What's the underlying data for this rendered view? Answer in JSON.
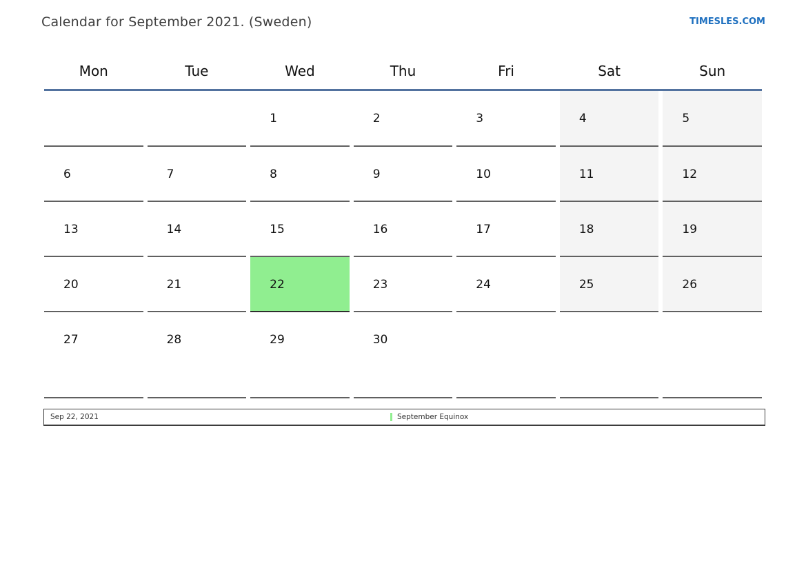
{
  "header": {
    "title": "Calendar for September 2021. (Sweden)",
    "site_link": "TIMESLES.COM"
  },
  "weekdays": [
    "Mon",
    "Tue",
    "Wed",
    "Thu",
    "Fri",
    "Sat",
    "Sun"
  ],
  "weeks": [
    [
      "",
      "",
      "1",
      "2",
      "3",
      "4",
      "5"
    ],
    [
      "6",
      "7",
      "8",
      "9",
      "10",
      "11",
      "12"
    ],
    [
      "13",
      "14",
      "15",
      "16",
      "17",
      "18",
      "19"
    ],
    [
      "20",
      "21",
      "22",
      "23",
      "24",
      "25",
      "26"
    ],
    [
      "27",
      "28",
      "29",
      "30",
      "",
      "",
      ""
    ]
  ],
  "highlighted_day": "22",
  "colors": {
    "highlight_green": "#90ee90",
    "weekend_gray": "#f4f4f4",
    "header_rule_blue": "#52729f",
    "link_blue": "#1d6fbf"
  },
  "legend": {
    "date": "Sep 22, 2021",
    "event": "September Equinox",
    "marker_color": "#90ee90"
  }
}
